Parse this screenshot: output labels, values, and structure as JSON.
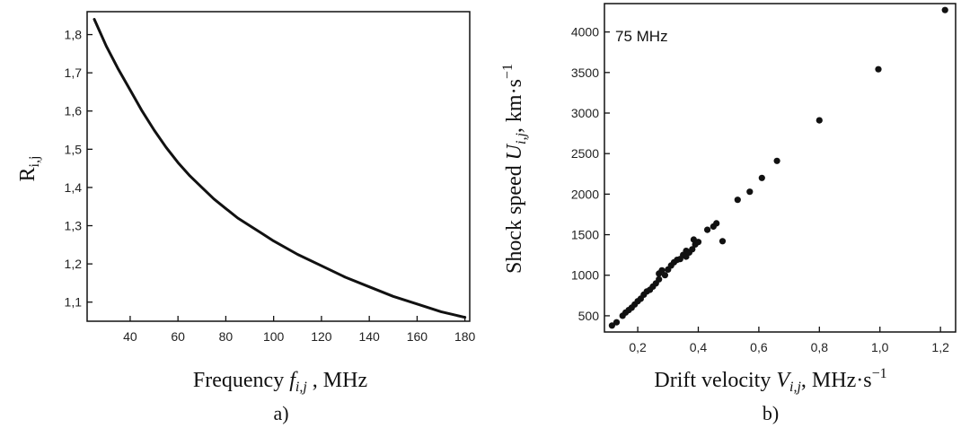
{
  "chart_data": [
    {
      "panel": "a",
      "caption": "a)",
      "type": "line",
      "xlabel_parts": {
        "main": "Frequency ",
        "var": "f",
        "sub": "i,j",
        "unit": " , MHz"
      },
      "ylabel_parts": {
        "main": "R",
        "sub": "i,j"
      },
      "xlim": [
        22,
        182
      ],
      "ylim": [
        1.05,
        1.86
      ],
      "x_ticks": [
        40,
        60,
        80,
        100,
        120,
        140,
        160,
        180
      ],
      "x_tick_labels": [
        "40",
        "60",
        "80",
        "100",
        "120",
        "140",
        "160",
        "180"
      ],
      "y_ticks": [
        1.1,
        1.2,
        1.3,
        1.4,
        1.5,
        1.6,
        1.7,
        1.8
      ],
      "y_tick_labels": [
        "1,1",
        "1,2",
        "1,3",
        "1,4",
        "1,5",
        "1,6",
        "1,7",
        "1,8"
      ],
      "grid": false,
      "series": [
        {
          "color": "#111111",
          "x": [
            25,
            30,
            35,
            40,
            45,
            50,
            55,
            60,
            65,
            70,
            75,
            80,
            85,
            90,
            95,
            100,
            110,
            120,
            130,
            140,
            150,
            160,
            170,
            180
          ],
          "y": [
            1.84,
            1.77,
            1.71,
            1.655,
            1.6,
            1.55,
            1.505,
            1.465,
            1.43,
            1.4,
            1.37,
            1.345,
            1.32,
            1.3,
            1.28,
            1.26,
            1.225,
            1.195,
            1.165,
            1.14,
            1.115,
            1.095,
            1.075,
            1.06
          ]
        }
      ]
    },
    {
      "panel": "b",
      "caption": "b)",
      "type": "scatter",
      "annotation": "75 MHz",
      "xlabel_parts": {
        "main": "Drift velocity ",
        "var": "V",
        "sub": "i,j",
        "unit": ", MHz·s",
        "sup": "−1"
      },
      "ylabel_parts": {
        "main": "Shock speed ",
        "var": "U",
        "sub": "i,j",
        "unit": ", km·s",
        "sup": "−1"
      },
      "xlim": [
        0.09,
        1.25
      ],
      "ylim": [
        300,
        4350
      ],
      "x_ticks": [
        0.2,
        0.4,
        0.6,
        0.8,
        1.0,
        1.2
      ],
      "x_tick_labels": [
        "0,2",
        "0,4",
        "0,6",
        "0,8",
        "1,0",
        "1,2"
      ],
      "y_ticks": [
        500,
        1000,
        1500,
        2000,
        2500,
        3000,
        3500,
        4000
      ],
      "y_tick_labels": [
        "500",
        "1000",
        "1500",
        "2000",
        "2500",
        "3000",
        "3500",
        "4000"
      ],
      "grid": false,
      "series": [
        {
          "color": "#111111",
          "points": [
            [
              0.115,
              380
            ],
            [
              0.13,
              420
            ],
            [
              0.15,
              500
            ],
            [
              0.16,
              540
            ],
            [
              0.17,
              570
            ],
            [
              0.18,
              600
            ],
            [
              0.19,
              640
            ],
            [
              0.2,
              680
            ],
            [
              0.21,
              710
            ],
            [
              0.22,
              760
            ],
            [
              0.23,
              800
            ],
            [
              0.24,
              820
            ],
            [
              0.25,
              860
            ],
            [
              0.26,
              900
            ],
            [
              0.27,
              950
            ],
            [
              0.27,
              1020
            ],
            [
              0.28,
              1060
            ],
            [
              0.29,
              1000
            ],
            [
              0.3,
              1070
            ],
            [
              0.31,
              1120
            ],
            [
              0.32,
              1160
            ],
            [
              0.33,
              1190
            ],
            [
              0.34,
              1200
            ],
            [
              0.35,
              1250
            ],
            [
              0.36,
              1300
            ],
            [
              0.36,
              1230
            ],
            [
              0.37,
              1280
            ],
            [
              0.38,
              1320
            ],
            [
              0.385,
              1440
            ],
            [
              0.39,
              1380
            ],
            [
              0.4,
              1410
            ],
            [
              0.43,
              1560
            ],
            [
              0.45,
              1600
            ],
            [
              0.46,
              1640
            ],
            [
              0.48,
              1420
            ],
            [
              0.53,
              1930
            ],
            [
              0.57,
              2030
            ],
            [
              0.61,
              2200
            ],
            [
              0.66,
              2410
            ],
            [
              0.8,
              2910
            ],
            [
              0.995,
              3540
            ],
            [
              1.215,
              4270
            ]
          ]
        }
      ]
    }
  ]
}
